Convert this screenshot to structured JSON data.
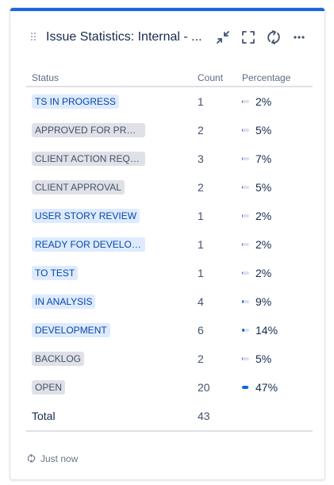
{
  "gadget": {
    "title": "Issue Statistics: Internal - ...",
    "accent_color": "#1868db",
    "icons": [
      "minimize-icon",
      "fullscreen-icon",
      "refresh-icon",
      "more-icon"
    ]
  },
  "table": {
    "headers": {
      "status": "Status",
      "count": "Count",
      "percentage": "Percentage"
    },
    "rows": [
      {
        "status": "TS IN PROGRESS",
        "lozenge": "blue",
        "count": "1",
        "percentage": "2%",
        "fraction": 0.02
      },
      {
        "status": "APPROVED FOR PROD...",
        "lozenge": "grey",
        "count": "2",
        "percentage": "5%",
        "fraction": 0.05
      },
      {
        "status": "CLIENT ACTION REQUI...",
        "lozenge": "grey",
        "count": "3",
        "percentage": "7%",
        "fraction": 0.07
      },
      {
        "status": "CLIENT APPROVAL",
        "lozenge": "grey",
        "count": "2",
        "percentage": "5%",
        "fraction": 0.05
      },
      {
        "status": "USER STORY REVIEW",
        "lozenge": "blue",
        "count": "1",
        "percentage": "2%",
        "fraction": 0.02
      },
      {
        "status": "READY FOR DEVELOP...",
        "lozenge": "blue",
        "count": "1",
        "percentage": "2%",
        "fraction": 0.02
      },
      {
        "status": "TO TEST",
        "lozenge": "blue",
        "count": "1",
        "percentage": "2%",
        "fraction": 0.02
      },
      {
        "status": "IN ANALYSIS",
        "lozenge": "blue",
        "count": "4",
        "percentage": "9%",
        "fraction": 0.09
      },
      {
        "status": "DEVELOPMENT",
        "lozenge": "blue",
        "count": "6",
        "percentage": "14%",
        "fraction": 0.14
      },
      {
        "status": "BACKLOG",
        "lozenge": "grey",
        "count": "2",
        "percentage": "5%",
        "fraction": 0.05
      },
      {
        "status": "OPEN",
        "lozenge": "grey",
        "count": "20",
        "percentage": "47%",
        "fraction": 0.47
      }
    ],
    "total": {
      "label": "Total",
      "count": "43"
    }
  },
  "footer": {
    "refreshed": "Just now",
    "icon": "refresh-icon"
  }
}
